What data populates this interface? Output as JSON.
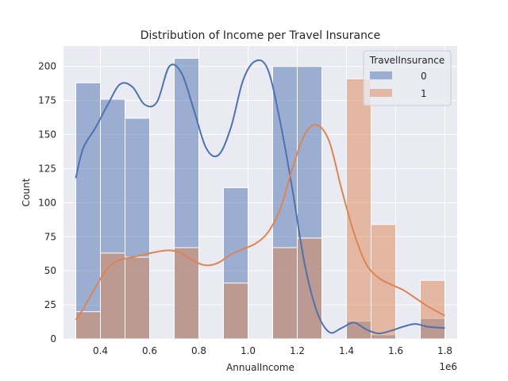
{
  "chart_data": {
    "type": "bar",
    "title": "Distribution of Income per Travel Insurance",
    "xlabel": "AnnualIncome",
    "ylabel": "Count",
    "x_offset_text": "1e6",
    "xlim": [
      0.25,
      1.85
    ],
    "ylim": [
      0,
      215
    ],
    "x_ticks": [
      0.4,
      0.6,
      0.8,
      1.0,
      1.2,
      1.4,
      1.6,
      1.8
    ],
    "x_tick_labels": [
      "0.4",
      "0.6",
      "0.8",
      "1.0",
      "1.2",
      "1.4",
      "1.6",
      "1.8"
    ],
    "y_ticks": [
      0,
      25,
      50,
      75,
      100,
      125,
      150,
      175,
      200
    ],
    "y_tick_labels": [
      "0",
      "25",
      "50",
      "75",
      "100",
      "125",
      "150",
      "175",
      "200"
    ],
    "grid": true,
    "bin_edges": [
      0.3,
      0.4,
      0.5,
      0.6,
      0.7,
      0.8,
      0.9,
      1.0,
      1.1,
      1.2,
      1.3,
      1.4,
      1.5,
      1.6,
      1.7,
      1.8
    ],
    "legend": {
      "title": "TravelInsurance",
      "position": "upper-right"
    },
    "series": [
      {
        "name": "0",
        "color": "#4c72b0",
        "bin_counts": [
          188,
          176,
          162,
          206,
          111,
          200,
          200,
          13,
          3,
          15
        ],
        "bins": [
          [
            0.3,
            0.4,
            188
          ],
          [
            0.4,
            0.5,
            176
          ],
          [
            0.5,
            0.6,
            162
          ],
          [
            0.7,
            0.8,
            206
          ],
          [
            0.9,
            1.0,
            111
          ],
          [
            1.1,
            1.2,
            200
          ],
          [
            1.2,
            1.3,
            200
          ],
          [
            1.4,
            1.5,
            13
          ],
          [
            1.5,
            1.6,
            3
          ],
          [
            1.7,
            1.8,
            15
          ]
        ],
        "kde": [
          [
            0.3,
            118
          ],
          [
            0.33,
            140
          ],
          [
            0.38,
            155
          ],
          [
            0.43,
            172
          ],
          [
            0.48,
            187
          ],
          [
            0.53,
            185
          ],
          [
            0.58,
            172
          ],
          [
            0.63,
            174
          ],
          [
            0.68,
            200
          ],
          [
            0.73,
            195
          ],
          [
            0.78,
            168
          ],
          [
            0.83,
            140
          ],
          [
            0.88,
            135
          ],
          [
            0.93,
            155
          ],
          [
            0.98,
            190
          ],
          [
            1.03,
            204
          ],
          [
            1.08,
            198
          ],
          [
            1.13,
            160
          ],
          [
            1.18,
            110
          ],
          [
            1.23,
            55
          ],
          [
            1.28,
            20
          ],
          [
            1.33,
            5
          ],
          [
            1.38,
            8
          ],
          [
            1.43,
            12
          ],
          [
            1.48,
            7
          ],
          [
            1.53,
            4
          ],
          [
            1.58,
            6
          ],
          [
            1.63,
            9
          ],
          [
            1.68,
            11
          ],
          [
            1.73,
            9
          ],
          [
            1.8,
            8
          ]
        ]
      },
      {
        "name": "1",
        "color": "#dd8452",
        "bin_counts": [
          20,
          63,
          60,
          67,
          41,
          67,
          74,
          191,
          84,
          43
        ],
        "bins": [
          [
            0.3,
            0.4,
            20
          ],
          [
            0.4,
            0.5,
            63
          ],
          [
            0.5,
            0.6,
            60
          ],
          [
            0.7,
            0.8,
            67
          ],
          [
            0.9,
            1.0,
            41
          ],
          [
            1.1,
            1.2,
            67
          ],
          [
            1.2,
            1.3,
            74
          ],
          [
            1.4,
            1.5,
            191
          ],
          [
            1.5,
            1.6,
            84
          ],
          [
            1.7,
            1.8,
            43
          ]
        ],
        "kde": [
          [
            0.3,
            14
          ],
          [
            0.33,
            22
          ],
          [
            0.38,
            38
          ],
          [
            0.43,
            52
          ],
          [
            0.48,
            58
          ],
          [
            0.53,
            60
          ],
          [
            0.58,
            62
          ],
          [
            0.63,
            64
          ],
          [
            0.68,
            65
          ],
          [
            0.73,
            63
          ],
          [
            0.78,
            57
          ],
          [
            0.83,
            54
          ],
          [
            0.88,
            56
          ],
          [
            0.93,
            62
          ],
          [
            0.98,
            66
          ],
          [
            1.03,
            70
          ],
          [
            1.08,
            78
          ],
          [
            1.13,
            95
          ],
          [
            1.18,
            125
          ],
          [
            1.23,
            150
          ],
          [
            1.28,
            157
          ],
          [
            1.33,
            145
          ],
          [
            1.38,
            110
          ],
          [
            1.43,
            78
          ],
          [
            1.48,
            55
          ],
          [
            1.53,
            45
          ],
          [
            1.58,
            40
          ],
          [
            1.63,
            36
          ],
          [
            1.68,
            30
          ],
          [
            1.73,
            24
          ],
          [
            1.8,
            17
          ]
        ]
      }
    ]
  }
}
